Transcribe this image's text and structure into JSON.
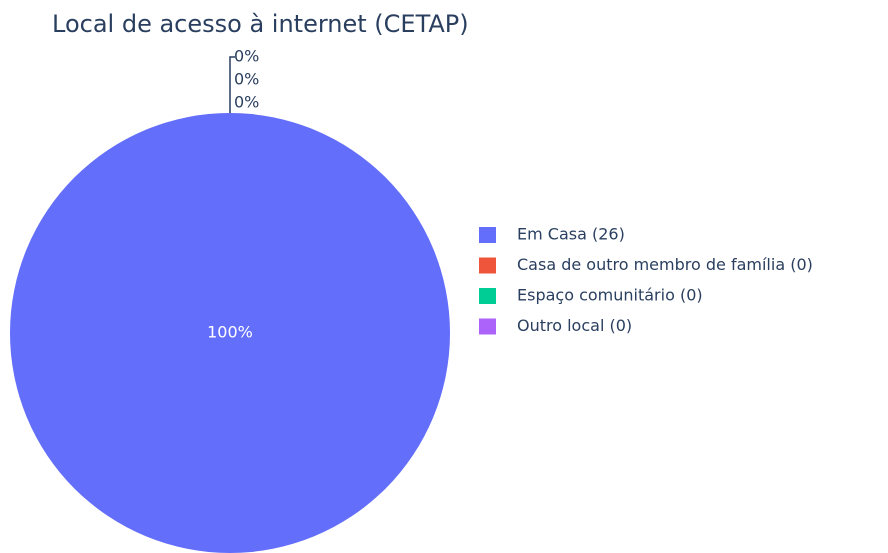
{
  "chart_data": {
    "type": "pie",
    "title": "Local de acesso à internet (CETAP)",
    "categories": [
      "Em Casa (26)",
      "Casa de outro membro de família (0)",
      "Espaço comunitário (0)",
      "Outro local (0)"
    ],
    "values": [
      100,
      0,
      0,
      0
    ],
    "value_labels": [
      "100%",
      "0%",
      "0%",
      "0%"
    ],
    "colors": [
      "#636efa",
      "#ef553b",
      "#00cc96",
      "#ab63fa"
    ],
    "legend": "right"
  }
}
